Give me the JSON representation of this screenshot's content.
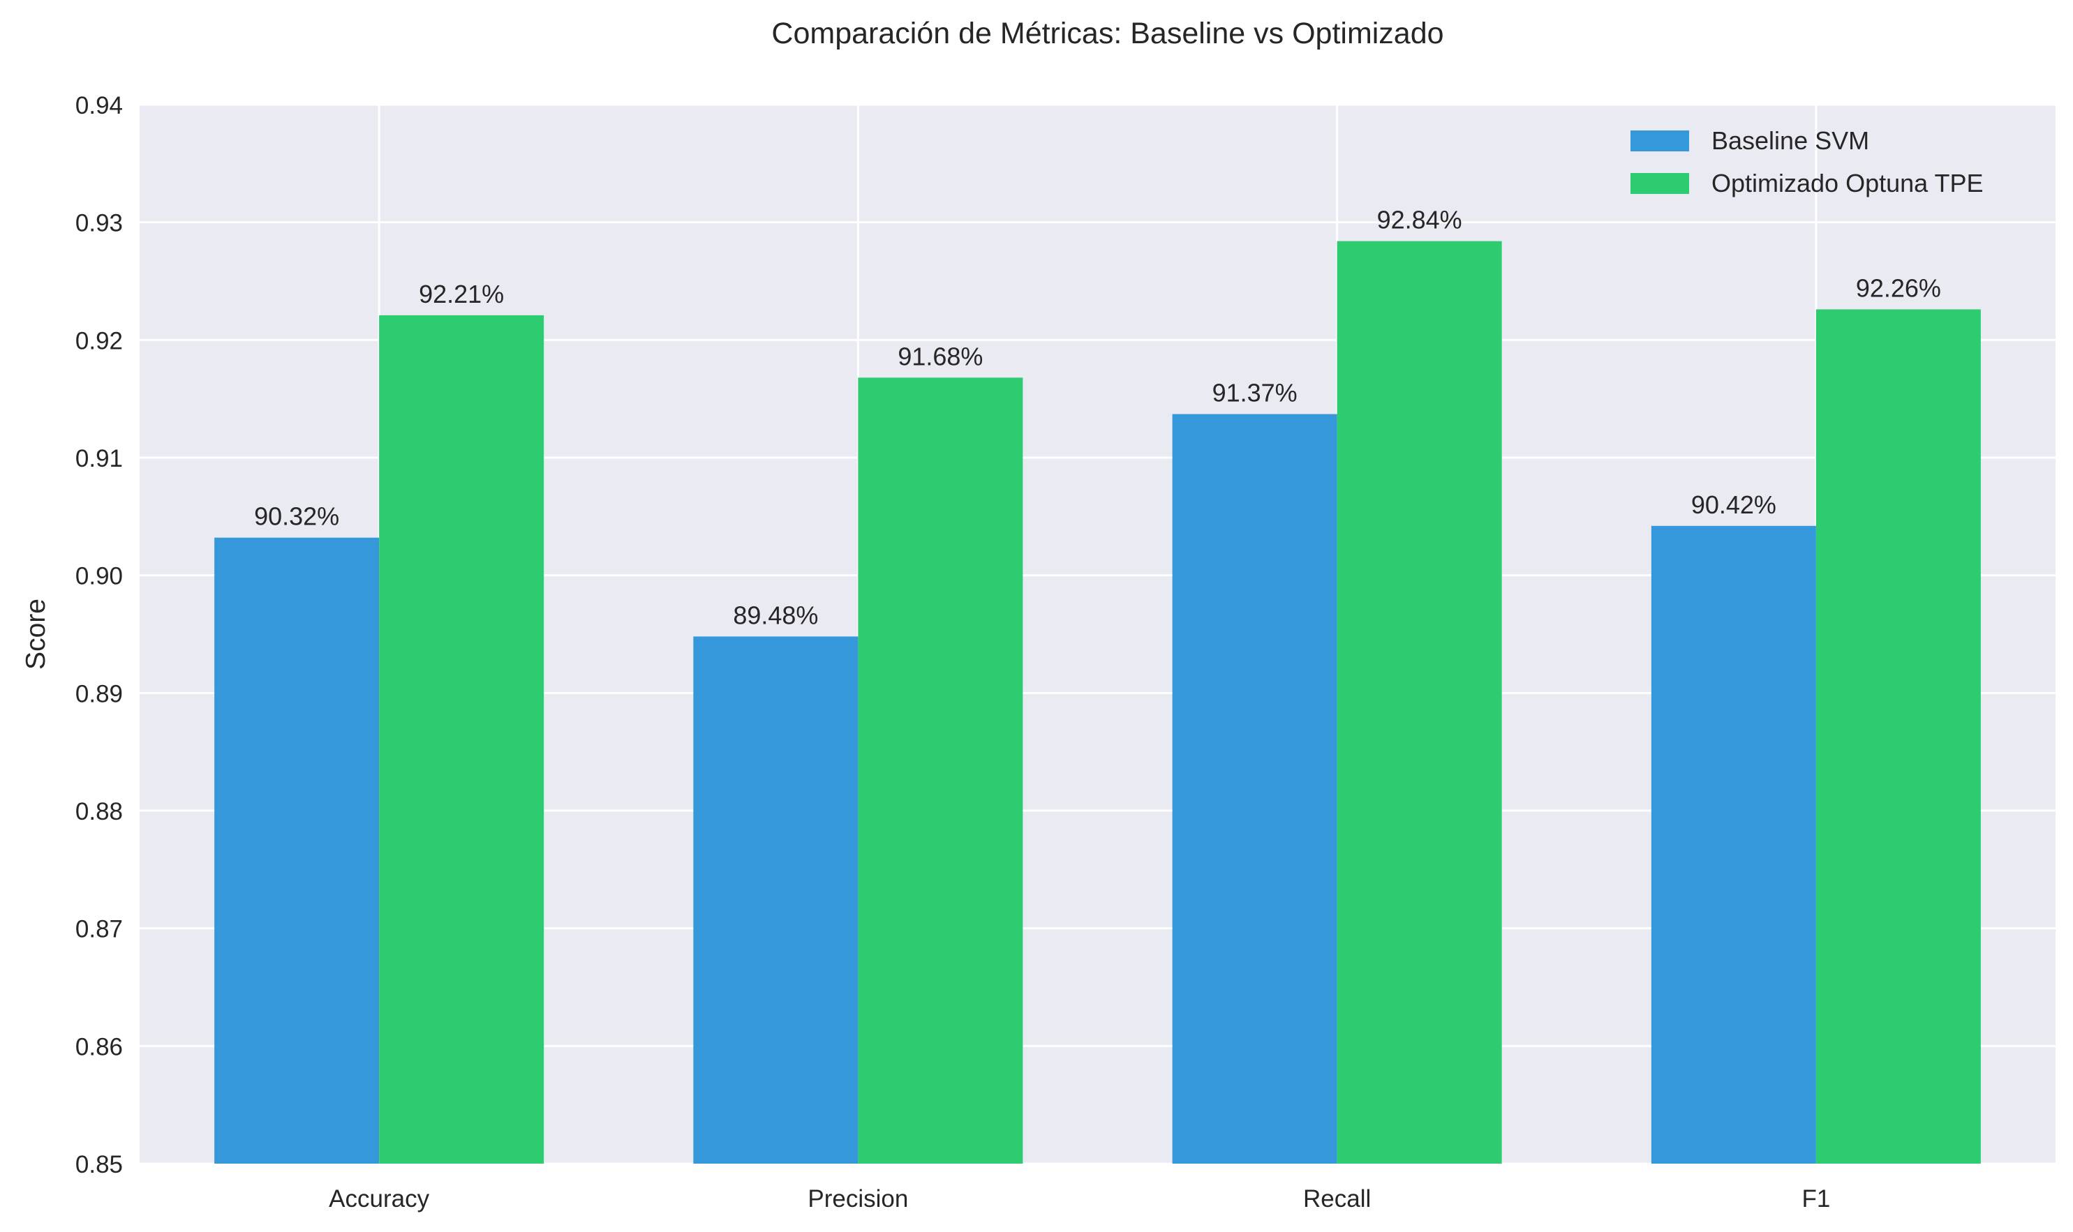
{
  "chart_data": {
    "type": "bar",
    "title": "Comparación de Métricas: Baseline vs Optimizado",
    "xlabel": "",
    "ylabel": "Score",
    "ylim": [
      0.85,
      0.94
    ],
    "yticks": [
      "0.85",
      "0.86",
      "0.87",
      "0.88",
      "0.89",
      "0.90",
      "0.91",
      "0.92",
      "0.93",
      "0.94"
    ],
    "categories": [
      "Accuracy",
      "Precision",
      "Recall",
      "F1"
    ],
    "series": [
      {
        "name": "Baseline SVM",
        "color": "#3498db",
        "values": [
          0.9032,
          0.8948,
          0.9137,
          0.9042
        ],
        "labels": [
          "90.32%",
          "89.48%",
          "91.37%",
          "90.42%"
        ]
      },
      {
        "name": "Optimizado Optuna TPE",
        "color": "#2ecc71",
        "values": [
          0.9221,
          0.9168,
          0.9284,
          0.9226
        ],
        "labels": [
          "92.21%",
          "91.68%",
          "92.84%",
          "92.26%"
        ]
      }
    ],
    "grid": true,
    "legend_position": "top-right",
    "plot_background": "#eaeaf2"
  }
}
